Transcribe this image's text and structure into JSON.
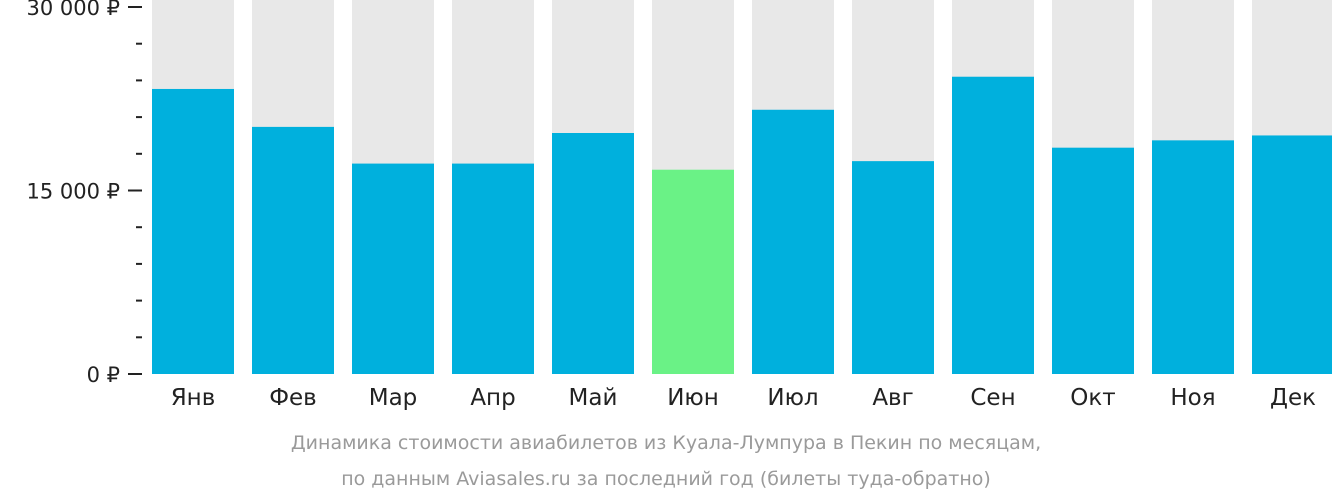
{
  "colors": {
    "bar": "#00b0dd",
    "bar_highlight": "#6af286",
    "background_column": "#e8e8e8",
    "axis": "#222222",
    "caption": "#9a9a9a"
  },
  "caption": {
    "line1": "Динамика стоимости авиабилетов из Куала-Лумпура в Пекин по месяцам,",
    "line2": "по данным Aviasales.ru за последний год (билеты туда-обратно)"
  },
  "chart_data": {
    "type": "bar",
    "categories": [
      "Янв",
      "Фев",
      "Мар",
      "Апр",
      "Май",
      "Июн",
      "Июл",
      "Авг",
      "Сен",
      "Окт",
      "Ноя",
      "Дек"
    ],
    "values": [
      23300,
      20200,
      17200,
      17200,
      19700,
      16700,
      21600,
      17400,
      24300,
      18500,
      19100,
      19500
    ],
    "highlight_index": 5,
    "ylim": [
      0,
      30000
    ],
    "yticks": [
      {
        "value": 0,
        "label": "0 ₽"
      },
      {
        "value": 15000,
        "label": "15 000 ₽"
      },
      {
        "value": 30000,
        "label": "30 000 ₽"
      }
    ],
    "minor_tick_step": 3000,
    "title": "",
    "xlabel": "",
    "ylabel": ""
  }
}
